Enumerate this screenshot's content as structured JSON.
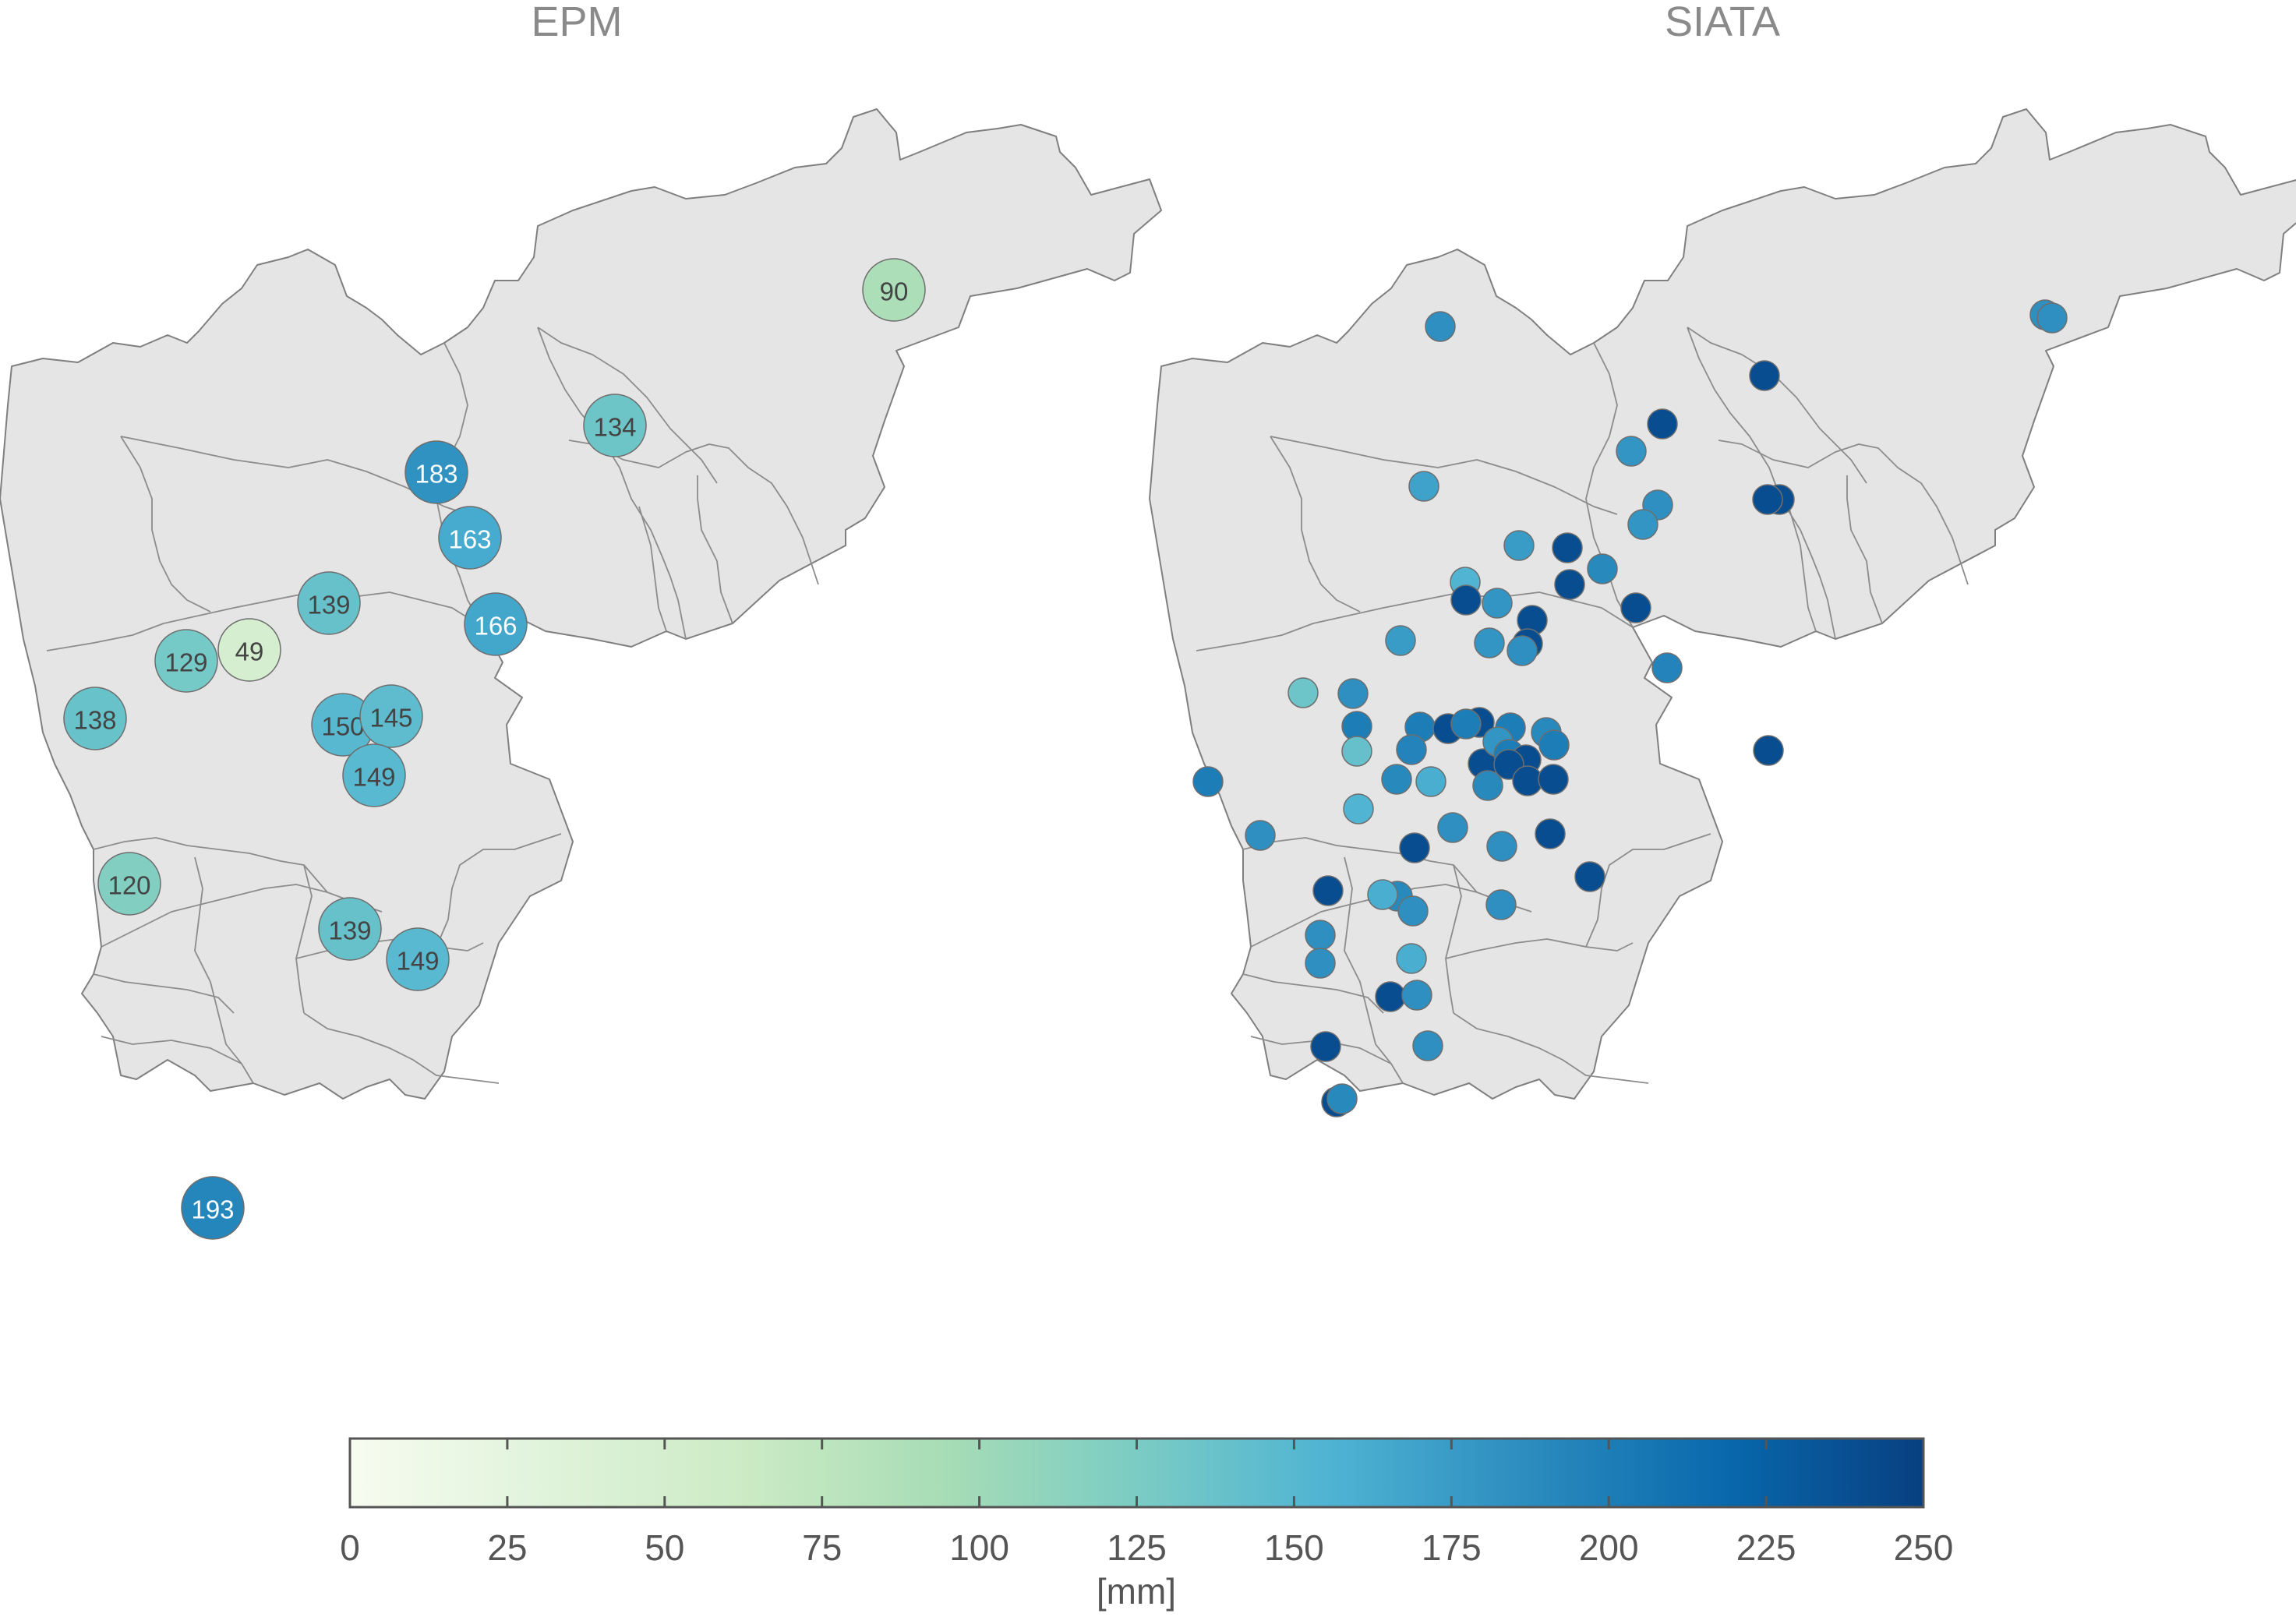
{
  "panels": [
    {
      "title": "EPM",
      "stations": [
        {
          "value": 90,
          "label": "90"
        },
        {
          "value": 134,
          "label": "134"
        },
        {
          "value": 183,
          "label": "183"
        },
        {
          "value": 163,
          "label": "163"
        },
        {
          "value": 139,
          "label": "139"
        },
        {
          "value": 166,
          "label": "166"
        },
        {
          "value": 129,
          "label": "129"
        },
        {
          "value": 49,
          "label": "49"
        },
        {
          "value": 138,
          "label": "138"
        },
        {
          "value": 150,
          "label": "150"
        },
        {
          "value": 145,
          "label": "145"
        },
        {
          "value": 149,
          "label": "149"
        },
        {
          "value": 120,
          "label": "120"
        },
        {
          "value": 139,
          "label": "139"
        },
        {
          "value": 149,
          "label": "149"
        },
        {
          "value": 193,
          "label": "193"
        }
      ]
    },
    {
      "title": "SIATA",
      "stations": [
        {
          "value": 185
        },
        {
          "value": 185
        },
        {
          "value": 185
        },
        {
          "value": 240
        },
        {
          "value": 240
        },
        {
          "value": 180
        },
        {
          "value": 240
        },
        {
          "value": 170
        },
        {
          "value": 185
        },
        {
          "value": 180
        },
        {
          "value": 240
        },
        {
          "value": 175
        },
        {
          "value": 240
        },
        {
          "value": 190
        },
        {
          "value": 155
        },
        {
          "value": 240
        },
        {
          "value": 195
        },
        {
          "value": 180
        },
        {
          "value": 240
        },
        {
          "value": 240
        },
        {
          "value": 240
        },
        {
          "value": 240
        },
        {
          "value": 175
        },
        {
          "value": 240
        },
        {
          "value": 180
        },
        {
          "value": 185
        },
        {
          "value": 135
        },
        {
          "value": 185
        },
        {
          "value": 200
        },
        {
          "value": 200
        },
        {
          "value": 240
        },
        {
          "value": 240
        },
        {
          "value": 200
        },
        {
          "value": 200
        },
        {
          "value": 190
        },
        {
          "value": 140
        },
        {
          "value": 195
        },
        {
          "value": 240
        },
        {
          "value": 180
        },
        {
          "value": 200
        },
        {
          "value": 240
        },
        {
          "value": 200
        },
        {
          "value": 240
        },
        {
          "value": 190
        },
        {
          "value": 160
        },
        {
          "value": 240
        },
        {
          "value": 190
        },
        {
          "value": 240
        },
        {
          "value": 200
        },
        {
          "value": 185
        },
        {
          "value": 155
        },
        {
          "value": 240
        },
        {
          "value": 185
        },
        {
          "value": 185
        },
        {
          "value": 240
        },
        {
          "value": 190
        },
        {
          "value": 240
        },
        {
          "value": 185
        },
        {
          "value": 185
        },
        {
          "value": 160
        },
        {
          "value": 185
        },
        {
          "value": 240
        },
        {
          "value": 185
        },
        {
          "value": 160
        },
        {
          "value": 240
        },
        {
          "value": 185
        },
        {
          "value": 240
        },
        {
          "value": 240
        },
        {
          "value": 190
        },
        {
          "value": 185
        }
      ]
    }
  ],
  "colorbar": {
    "min": 0,
    "max": 250,
    "ticks": [
      {
        "value": 0,
        "label": "0"
      },
      {
        "value": 25,
        "label": "25"
      },
      {
        "value": 50,
        "label": "50"
      },
      {
        "value": 75,
        "label": "75"
      },
      {
        "value": 100,
        "label": "100"
      },
      {
        "value": 125,
        "label": "125"
      },
      {
        "value": 150,
        "label": "150"
      },
      {
        "value": 175,
        "label": "175"
      },
      {
        "value": 200,
        "label": "200"
      },
      {
        "value": 225,
        "label": "225"
      },
      {
        "value": 250,
        "label": "250"
      }
    ],
    "unit": "[mm]",
    "colormap": [
      "#f7fcf0",
      "#e0f3db",
      "#ccebc5",
      "#a8ddb5",
      "#7bccc4",
      "#4eb3d3",
      "#2b8cbe",
      "#0868ac",
      "#084081"
    ]
  }
}
